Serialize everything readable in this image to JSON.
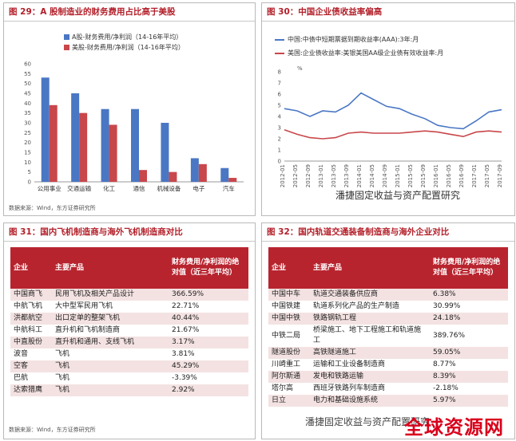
{
  "fig29": {
    "title": "图 29：A 股制造业的财务费用占比高于美股",
    "source": "数据来源：Wind，东方证券研究所",
    "chart_data": {
      "type": "bar",
      "categories": [
        "公用事业",
        "交通运输",
        "化工",
        "通信",
        "机械设备",
        "电子",
        "汽车"
      ],
      "series": [
        {
          "name": "A股-财务费用/净利润（14-16年平均）",
          "values": [
            53,
            45,
            37,
            37,
            30,
            12,
            7
          ]
        },
        {
          "name": "美股-财务费用/净利润（14-16年平均）",
          "values": [
            39,
            35,
            29,
            6,
            5,
            9,
            2
          ]
        }
      ],
      "ylim": [
        0,
        60
      ],
      "yticks": [
        0,
        5,
        10,
        15,
        20,
        25,
        30,
        35,
        40,
        45,
        50,
        55,
        60
      ],
      "colors": [
        "#4a77c4",
        "#c8474b"
      ],
      "legend": "top"
    }
  },
  "fig30": {
    "title": "图 30：中国企业债收益率偏高",
    "unit": "%",
    "watermark": "潘捷固定收益与资产配置研究",
    "chart_data": {
      "type": "line",
      "x": [
        "2012-01",
        "2012-05",
        "2012-09",
        "2013-01",
        "2013-05",
        "2013-09",
        "2014-01",
        "2014-05",
        "2014-09",
        "2015-01",
        "2015-05",
        "2015-09",
        "2016-01",
        "2016-05",
        "2016-09",
        "2017-01",
        "2017-05",
        "2017-09"
      ],
      "series": [
        {
          "name": "中国:中债中短期票据到期收益率(AAA):3年:月",
          "values": [
            4.7,
            4.5,
            4.0,
            4.5,
            4.4,
            5.0,
            6.1,
            5.5,
            4.9,
            4.7,
            4.2,
            3.8,
            3.2,
            3.0,
            2.9,
            3.6,
            4.4,
            4.6
          ]
        },
        {
          "name": "美国:企业债收益率:美银美国AA级企业债有效收益率:月",
          "values": [
            2.8,
            2.4,
            2.1,
            2.0,
            2.1,
            2.5,
            2.6,
            2.5,
            2.5,
            2.5,
            2.6,
            2.7,
            2.6,
            2.4,
            2.2,
            2.6,
            2.7,
            2.6
          ]
        }
      ],
      "ylim": [
        0,
        8
      ],
      "yticks": [
        0,
        1,
        2,
        3,
        4,
        5,
        6,
        7,
        8
      ],
      "colors": [
        "#4a77c4",
        "#c8474b"
      ],
      "legend": "top"
    }
  },
  "fig31": {
    "title": "图 31：国内飞机制造商与海外飞机制造商对比",
    "source": "数据来源：Wind，东方证券研究所",
    "headers": [
      "企业",
      "主要产品",
      "财务费用/净利润的绝对值（近三年平均）"
    ],
    "rows": [
      [
        "中国商飞",
        "民用飞机及相关产品设计",
        "366.59%"
      ],
      [
        "中航飞机",
        "大中型军民用飞机",
        "22.71%"
      ],
      [
        "洪都航空",
        "出口定单的整架飞机",
        "40.44%"
      ],
      [
        "中航科工",
        "直升机和飞机制造商",
        "21.67%"
      ],
      [
        "中直股份",
        "直升机和通用、支线飞机",
        "3.17%"
      ],
      [
        "波音",
        "飞机",
        "3.81%"
      ],
      [
        "空客",
        "飞机",
        "45.29%"
      ],
      [
        "巴航",
        "飞机",
        "-3.39%"
      ],
      [
        "达索猎鹰",
        "飞机",
        "2.92%"
      ]
    ]
  },
  "fig32": {
    "title": "图 32：国内轨道交通装备制造商与海外企业对比",
    "watermark": "潘捷固定收益与资产配置研究",
    "brand": "全球资源网",
    "headers": [
      "企业",
      "主要产品",
      "财务费用/净利润的绝对值（近三年平均）"
    ],
    "rows": [
      [
        "中国中车",
        "轨道交通装备供应商",
        "6.38%"
      ],
      [
        "中国铁建",
        "轨道系列化产品的生产制造",
        "30.99%"
      ],
      [
        "中国中铁",
        "铁路钢轨工程",
        "24.18%"
      ],
      [
        "中铁二局",
        "桥梁施工、地下工程施工和轨道施工",
        "389.76%"
      ],
      [
        "隧道股份",
        "高铁隧道施工",
        "59.05%"
      ],
      [
        "川崎重工",
        "运输和工业设备制造商",
        "8.77%"
      ],
      [
        "阿尔斯通",
        "发电和铁路运输",
        "8.39%"
      ],
      [
        "塔尔高",
        "西班牙铁路列车制造商",
        "-2.18%"
      ],
      [
        "日立",
        "电力和基础设施系统",
        "5.97%"
      ]
    ]
  }
}
